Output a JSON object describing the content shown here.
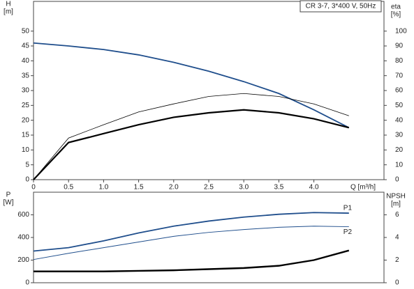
{
  "chart_data": [
    {
      "type": "line",
      "title": "CR 3-7, 3*400 V, 50Hz",
      "ylabel": [
        "H",
        "[m]"
      ],
      "y2label": [
        "eta",
        "[%]"
      ],
      "xlabel": "Q [m³/h]",
      "x": [
        0,
        0.5,
        1.0,
        1.5,
        2.0,
        2.5,
        3.0,
        3.5,
        4.0,
        4.5
      ],
      "xlim": [
        0,
        5
      ],
      "xticks": [
        0,
        0.5,
        {
          "value": 1,
          "label": "1.0"
        },
        1.5,
        {
          "value": 2,
          "label": "2.0"
        },
        2.5,
        {
          "value": 3,
          "label": "3.0"
        },
        3.5,
        {
          "value": 4,
          "label": "4.0"
        }
      ],
      "ylim": [
        0,
        60
      ],
      "yticks": [
        0,
        5,
        10,
        15,
        20,
        25,
        30,
        35,
        40,
        45,
        50
      ],
      "y2lim": [
        0,
        120
      ],
      "y2ticks": [
        0,
        10,
        20,
        30,
        40,
        50,
        60,
        70,
        80,
        90,
        100
      ],
      "series": [
        {
          "color": "#1f4e8c",
          "values": [
            46,
            45,
            43.8,
            42,
            39.5,
            36.5,
            33,
            29,
            23.5,
            17.5
          ]
        },
        {
          "color": "#000000",
          "axis": "y2",
          "values": [
            0,
            28,
            37,
            45.6,
            51,
            56,
            58,
            56,
            51,
            43
          ]
        },
        {
          "color": "#000000",
          "axis": "y2",
          "values": [
            0,
            25,
            31,
            37,
            42,
            45,
            47,
            45,
            41,
            35
          ]
        }
      ]
    },
    {
      "type": "line",
      "ylabel": [
        "P",
        "[W]"
      ],
      "y2label": [
        "NPSH",
        "[m]"
      ],
      "x": [
        0,
        0.5,
        1.0,
        1.5,
        2.0,
        2.5,
        3.0,
        3.5,
        4.0,
        4.5
      ],
      "xlim": [
        0,
        5
      ],
      "ylim": [
        0,
        800
      ],
      "yticks": [
        0,
        200,
        400,
        600
      ],
      "y2lim": [
        0,
        8
      ],
      "y2ticks": [
        0,
        2,
        4,
        6
      ],
      "series": [
        {
          "name": "P1",
          "color": "#1f4e8c",
          "values": [
            280,
            310,
            370,
            440,
            500,
            545,
            580,
            605,
            620,
            615
          ]
        },
        {
          "name": "P2",
          "color": "#1f4e8c",
          "values": [
            205,
            260,
            310,
            360,
            410,
            445,
            470,
            490,
            500,
            495
          ]
        },
        {
          "color": "#000000",
          "axis": "y2",
          "values": [
            1.0,
            1.0,
            1.0,
            1.05,
            1.1,
            1.2,
            1.3,
            1.5,
            2.0,
            2.85
          ]
        }
      ]
    }
  ]
}
